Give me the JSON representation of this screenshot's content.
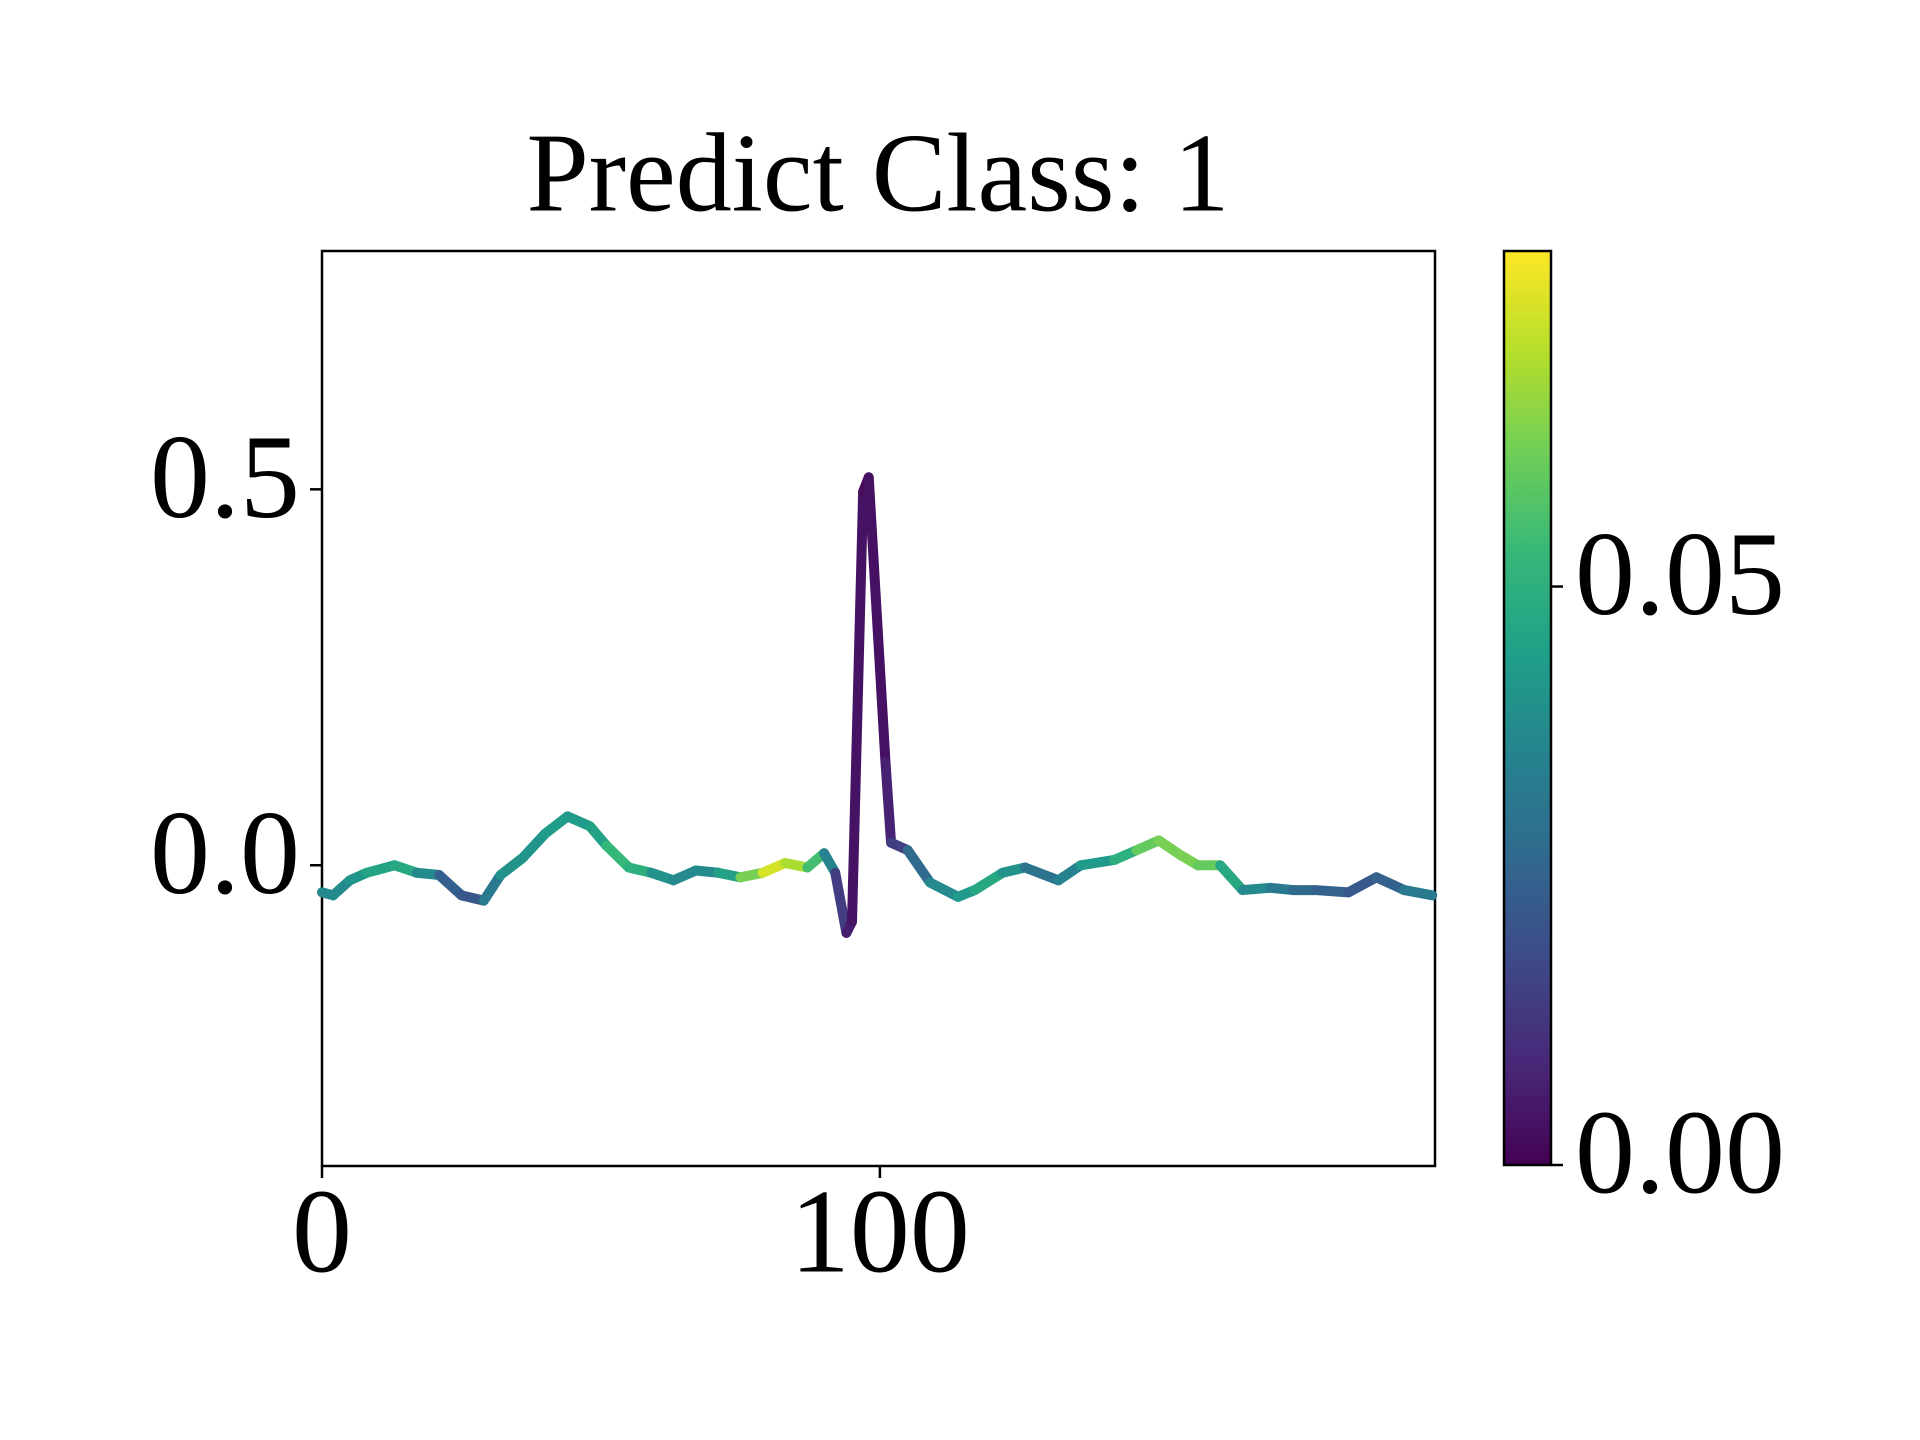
{
  "chart_data": {
    "type": "line",
    "title": "Predict Class: 1",
    "x": [
      0,
      2,
      5,
      8,
      13,
      17,
      21,
      25,
      29,
      32,
      36,
      40,
      44,
      48,
      51,
      55,
      59,
      63,
      67,
      71,
      75,
      79,
      83,
      87,
      90,
      92,
      94,
      95,
      97,
      98,
      101,
      102,
      105,
      109,
      114,
      117,
      122,
      126,
      132,
      136,
      142,
      146,
      150,
      154,
      157,
      161,
      165,
      170,
      174,
      178,
      184,
      189,
      194,
      199
    ],
    "values": [
      -0.036,
      -0.04,
      -0.02,
      -0.01,
      0.0,
      -0.01,
      -0.013,
      -0.04,
      -0.047,
      -0.013,
      0.01,
      0.042,
      0.065,
      0.052,
      0.026,
      -0.003,
      -0.01,
      -0.02,
      -0.007,
      -0.01,
      -0.016,
      -0.01,
      0.003,
      -0.003,
      0.016,
      -0.01,
      -0.09,
      -0.075,
      0.497,
      0.516,
      0.137,
      0.03,
      0.02,
      -0.023,
      -0.042,
      -0.033,
      -0.01,
      -0.003,
      -0.02,
      0.0,
      0.007,
      0.02,
      0.033,
      0.013,
      0.0,
      0.0,
      -0.033,
      -0.03,
      -0.033,
      -0.033,
      -0.036,
      -0.016,
      -0.033,
      -0.04
    ],
    "color_values": [
      0.04,
      0.035,
      0.04,
      0.042,
      0.05,
      0.045,
      0.03,
      0.018,
      0.025,
      0.04,
      0.04,
      0.042,
      0.045,
      0.04,
      0.05,
      0.055,
      0.045,
      0.035,
      0.04,
      0.035,
      0.055,
      0.07,
      0.078,
      0.06,
      0.05,
      0.02,
      0.008,
      0.005,
      0.003,
      0.002,
      0.005,
      0.01,
      0.02,
      0.035,
      0.04,
      0.045,
      0.05,
      0.03,
      0.03,
      0.04,
      0.045,
      0.055,
      0.065,
      0.06,
      0.065,
      0.055,
      0.04,
      0.035,
      0.03,
      0.025,
      0.025,
      0.02,
      0.03,
      0.035
    ],
    "cmap": "viridis",
    "xlim": [
      0,
      199.5
    ],
    "xticks": [
      0,
      100
    ],
    "ylim": [
      -0.4,
      0.817
    ],
    "yticks": [
      {
        "value": 0.0,
        "label": "0.0"
      },
      {
        "value": 0.5,
        "label": "0.5"
      }
    ],
    "clim": [
      0,
      0.079
    ],
    "cticks": [
      {
        "value": 0.0,
        "label": "0.00"
      },
      {
        "value": 0.05,
        "label": "0.05"
      }
    ]
  }
}
